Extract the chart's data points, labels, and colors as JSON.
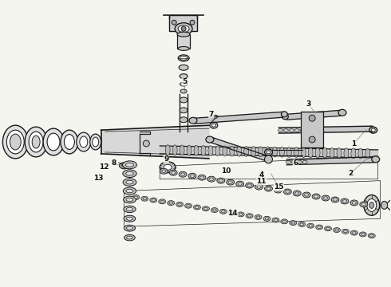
{
  "bg_color": "#f5f5f0",
  "line_color": "#1a1a1a",
  "label_fontsize": 6.5,
  "figsize": [
    4.9,
    3.6
  ],
  "dpi": 100
}
